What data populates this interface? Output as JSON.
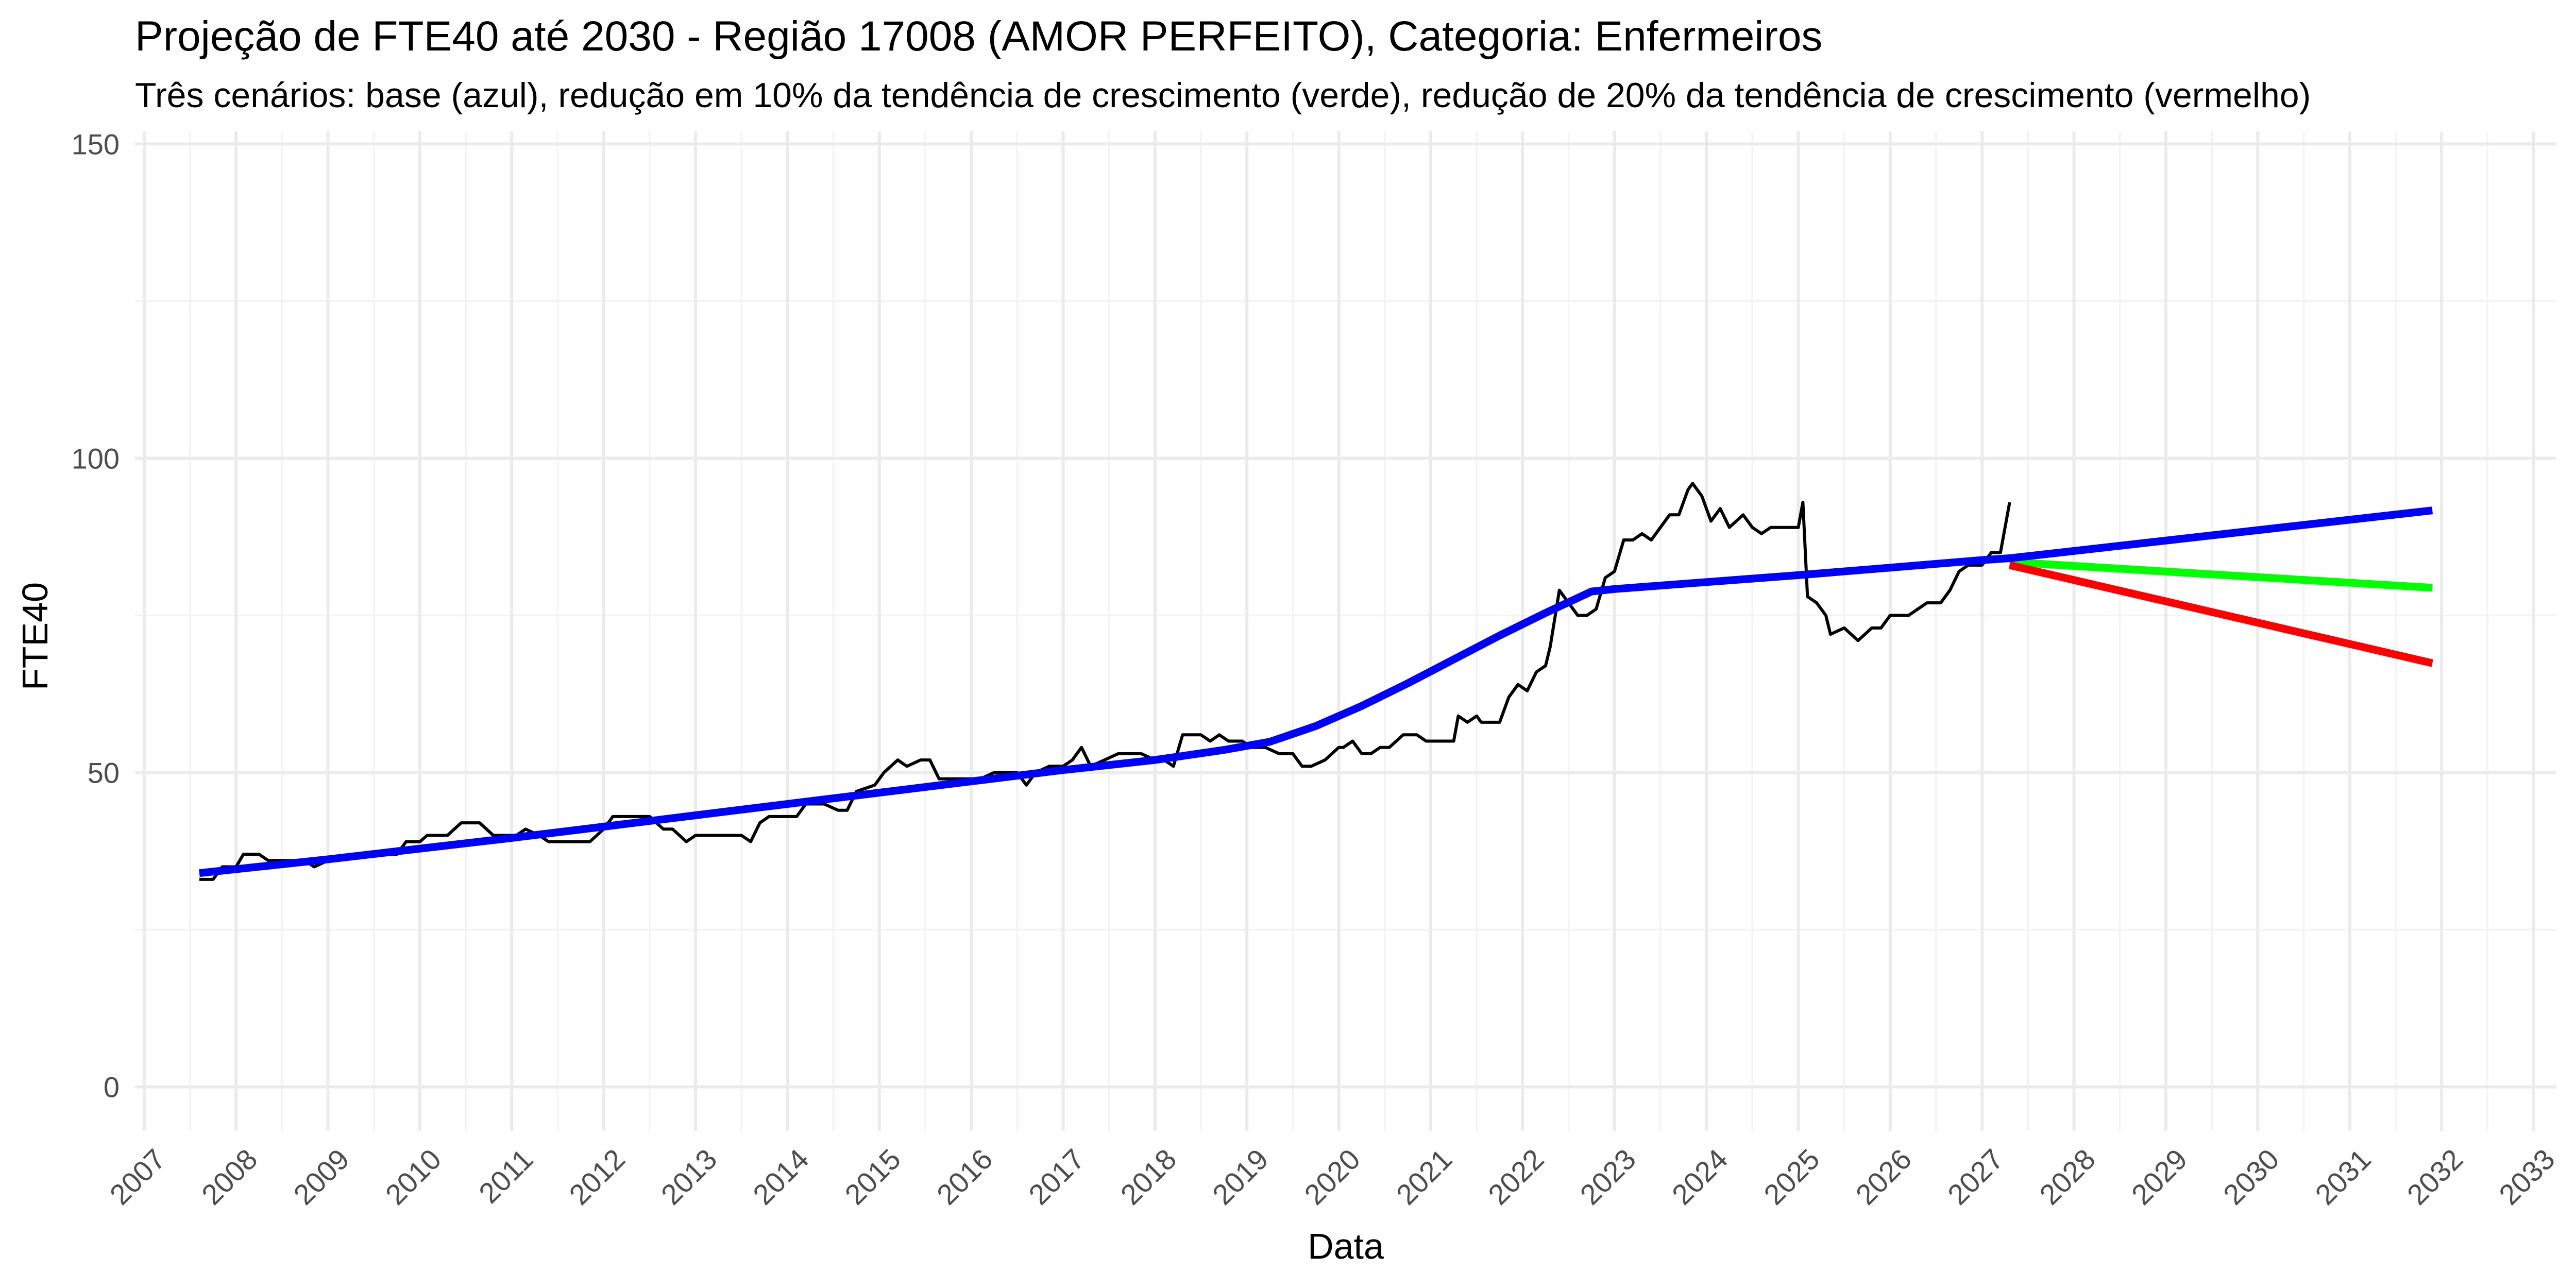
{
  "chart_data": {
    "type": "line",
    "title": "Projeção de FTE40 até 2030 - Região 17008 (AMOR PERFEITO), Categoria: Enfermeiros",
    "subtitle": "Três cenários: base (azul), redução em 10% da tendência de crescimento (verde), redução de 20% da tendência de crescimento (vermelho)",
    "xlabel": "Data",
    "ylabel": "FTE40",
    "xlim": [
      2006.9,
      2033.25
    ],
    "ylim": [
      -7,
      152
    ],
    "x_ticks": [
      "2007",
      "2008",
      "2009",
      "2010",
      "2011",
      "2012",
      "2013",
      "2014",
      "2015",
      "2016",
      "2017",
      "2018",
      "2019",
      "2020",
      "2021",
      "2022",
      "2023",
      "2024",
      "2025",
      "2026",
      "2027",
      "2028",
      "2029",
      "2030",
      "2031",
      "2032",
      "2033"
    ],
    "y_ticks": [
      0,
      50,
      100,
      150
    ],
    "grid": true,
    "legend": "none",
    "series": [
      {
        "color": "#000000",
        "points": [
          [
            2007.6,
            33
          ],
          [
            2007.75,
            33
          ],
          [
            2007.85,
            35
          ],
          [
            2008.0,
            35
          ],
          [
            2008.08,
            37
          ],
          [
            2008.25,
            37
          ],
          [
            2008.35,
            36
          ],
          [
            2008.5,
            36
          ],
          [
            2008.75,
            36
          ],
          [
            2008.85,
            35
          ],
          [
            2009.0,
            36
          ],
          [
            2009.25,
            37
          ],
          [
            2009.5,
            37
          ],
          [
            2009.6,
            37
          ],
          [
            2009.75,
            37
          ],
          [
            2009.85,
            39
          ],
          [
            2010.0,
            39
          ],
          [
            2010.08,
            40
          ],
          [
            2010.3,
            40
          ],
          [
            2010.45,
            42
          ],
          [
            2010.65,
            42
          ],
          [
            2010.8,
            40
          ],
          [
            2010.95,
            40
          ],
          [
            2011.05,
            40
          ],
          [
            2011.15,
            41
          ],
          [
            2011.3,
            40
          ],
          [
            2011.4,
            39
          ],
          [
            2011.55,
            39
          ],
          [
            2011.75,
            39
          ],
          [
            2011.85,
            39
          ],
          [
            2012.0,
            41
          ],
          [
            2012.1,
            43
          ],
          [
            2012.3,
            43
          ],
          [
            2012.5,
            43
          ],
          [
            2012.65,
            41
          ],
          [
            2012.75,
            41
          ],
          [
            2012.9,
            39
          ],
          [
            2013.0,
            40
          ],
          [
            2013.2,
            40
          ],
          [
            2013.5,
            40
          ],
          [
            2013.6,
            39
          ],
          [
            2013.7,
            42
          ],
          [
            2013.8,
            43
          ],
          [
            2014.0,
            43
          ],
          [
            2014.1,
            43
          ],
          [
            2014.2,
            45
          ],
          [
            2014.4,
            45
          ],
          [
            2014.55,
            44
          ],
          [
            2014.65,
            44
          ],
          [
            2014.75,
            47
          ],
          [
            2014.95,
            48
          ],
          [
            2015.05,
            50
          ],
          [
            2015.2,
            52
          ],
          [
            2015.3,
            51
          ],
          [
            2015.45,
            52
          ],
          [
            2015.55,
            52
          ],
          [
            2015.65,
            49
          ],
          [
            2015.8,
            49
          ],
          [
            2016.0,
            49
          ],
          [
            2016.1,
            49
          ],
          [
            2016.25,
            50
          ],
          [
            2016.4,
            50
          ],
          [
            2016.5,
            50
          ],
          [
            2016.6,
            48
          ],
          [
            2016.7,
            50
          ],
          [
            2016.85,
            51
          ],
          [
            2017.0,
            51
          ],
          [
            2017.1,
            52
          ],
          [
            2017.2,
            54
          ],
          [
            2017.3,
            51
          ],
          [
            2017.45,
            52
          ],
          [
            2017.6,
            53
          ],
          [
            2017.75,
            53
          ],
          [
            2017.85,
            53
          ],
          [
            2018.0,
            52
          ],
          [
            2018.1,
            52
          ],
          [
            2018.2,
            51
          ],
          [
            2018.3,
            56
          ],
          [
            2018.5,
            56
          ],
          [
            2018.6,
            55
          ],
          [
            2018.7,
            56
          ],
          [
            2018.8,
            55
          ],
          [
            2018.95,
            55
          ],
          [
            2019.05,
            54
          ],
          [
            2019.2,
            54
          ],
          [
            2019.35,
            53
          ],
          [
            2019.5,
            53
          ],
          [
            2019.6,
            51
          ],
          [
            2019.7,
            51
          ],
          [
            2019.85,
            52
          ],
          [
            2020.0,
            54
          ],
          [
            2020.05,
            54
          ],
          [
            2020.15,
            55
          ],
          [
            2020.25,
            53
          ],
          [
            2020.35,
            53
          ],
          [
            2020.45,
            54
          ],
          [
            2020.55,
            54
          ],
          [
            2020.7,
            56
          ],
          [
            2020.85,
            56
          ],
          [
            2020.95,
            55
          ],
          [
            2021.1,
            55
          ],
          [
            2021.25,
            55
          ],
          [
            2021.3,
            59
          ],
          [
            2021.4,
            58
          ],
          [
            2021.5,
            59
          ],
          [
            2021.55,
            58
          ],
          [
            2021.75,
            58
          ],
          [
            2021.85,
            62
          ],
          [
            2021.95,
            64
          ],
          [
            2022.05,
            63
          ],
          [
            2022.15,
            66
          ],
          [
            2022.25,
            67
          ],
          [
            2022.3,
            70
          ],
          [
            2022.4,
            79
          ],
          [
            2022.5,
            77
          ],
          [
            2022.6,
            75
          ],
          [
            2022.7,
            75
          ],
          [
            2022.8,
            76
          ],
          [
            2022.9,
            81
          ],
          [
            2023.0,
            82
          ],
          [
            2023.1,
            87
          ],
          [
            2023.2,
            87
          ],
          [
            2023.3,
            88
          ],
          [
            2023.4,
            87
          ],
          [
            2023.5,
            89
          ],
          [
            2023.6,
            91
          ],
          [
            2023.7,
            91
          ],
          [
            2023.8,
            95
          ],
          [
            2023.85,
            96
          ],
          [
            2023.95,
            94
          ],
          [
            2024.05,
            90
          ],
          [
            2024.15,
            92
          ],
          [
            2024.25,
            89
          ],
          [
            2024.4,
            91
          ],
          [
            2024.5,
            89
          ],
          [
            2024.6,
            88
          ],
          [
            2024.7,
            89
          ],
          [
            2024.8,
            89
          ],
          [
            2024.95,
            89
          ],
          [
            2025.0,
            89
          ],
          [
            2025.05,
            93
          ],
          [
            2025.1,
            78
          ],
          [
            2025.2,
            77
          ],
          [
            2025.3,
            75
          ],
          [
            2025.35,
            72
          ],
          [
            2025.5,
            73
          ],
          [
            2025.65,
            71
          ],
          [
            2025.8,
            73
          ],
          [
            2025.9,
            73
          ],
          [
            2026.0,
            75
          ],
          [
            2026.2,
            75
          ],
          [
            2026.4,
            77
          ],
          [
            2026.55,
            77
          ],
          [
            2026.65,
            79
          ],
          [
            2026.75,
            82
          ],
          [
            2026.85,
            83
          ],
          [
            2027.0,
            83
          ],
          [
            2027.1,
            85
          ],
          [
            2027.2,
            85
          ],
          [
            2027.3,
            93
          ]
        ]
      },
      {
        "color": "#0000ff",
        "points": [
          [
            2007.6,
            34
          ],
          [
            2009.0,
            36.2
          ],
          [
            2010.0,
            37.9
          ],
          [
            2011.0,
            39.6
          ],
          [
            2012.0,
            41.4
          ],
          [
            2013.0,
            43.2
          ],
          [
            2014.0,
            45.0
          ],
          [
            2015.0,
            46.8
          ],
          [
            2016.0,
            48.6
          ],
          [
            2017.0,
            50.4
          ],
          [
            2018.0,
            52.0
          ],
          [
            2018.75,
            53.6
          ],
          [
            2019.25,
            54.9
          ],
          [
            2019.75,
            57.4
          ],
          [
            2020.25,
            60.6
          ],
          [
            2020.75,
            64.2
          ],
          [
            2021.25,
            68.0
          ],
          [
            2021.75,
            71.8
          ],
          [
            2022.25,
            75.4
          ],
          [
            2022.75,
            78.8
          ],
          [
            2023.0,
            79.2
          ],
          [
            2024.0,
            80.3
          ],
          [
            2025.0,
            81.4
          ],
          [
            2026.0,
            82.6
          ],
          [
            2027.0,
            83.8
          ],
          [
            2027.3,
            84.1
          ],
          [
            2031.9,
            91.7
          ]
        ]
      },
      {
        "color": "#00ff00",
        "points": [
          [
            2027.3,
            83.5
          ],
          [
            2031.9,
            79.4
          ]
        ]
      },
      {
        "color": "#ff0000",
        "points": [
          [
            2027.3,
            83.0
          ],
          [
            2031.9,
            67.4
          ]
        ]
      }
    ]
  }
}
